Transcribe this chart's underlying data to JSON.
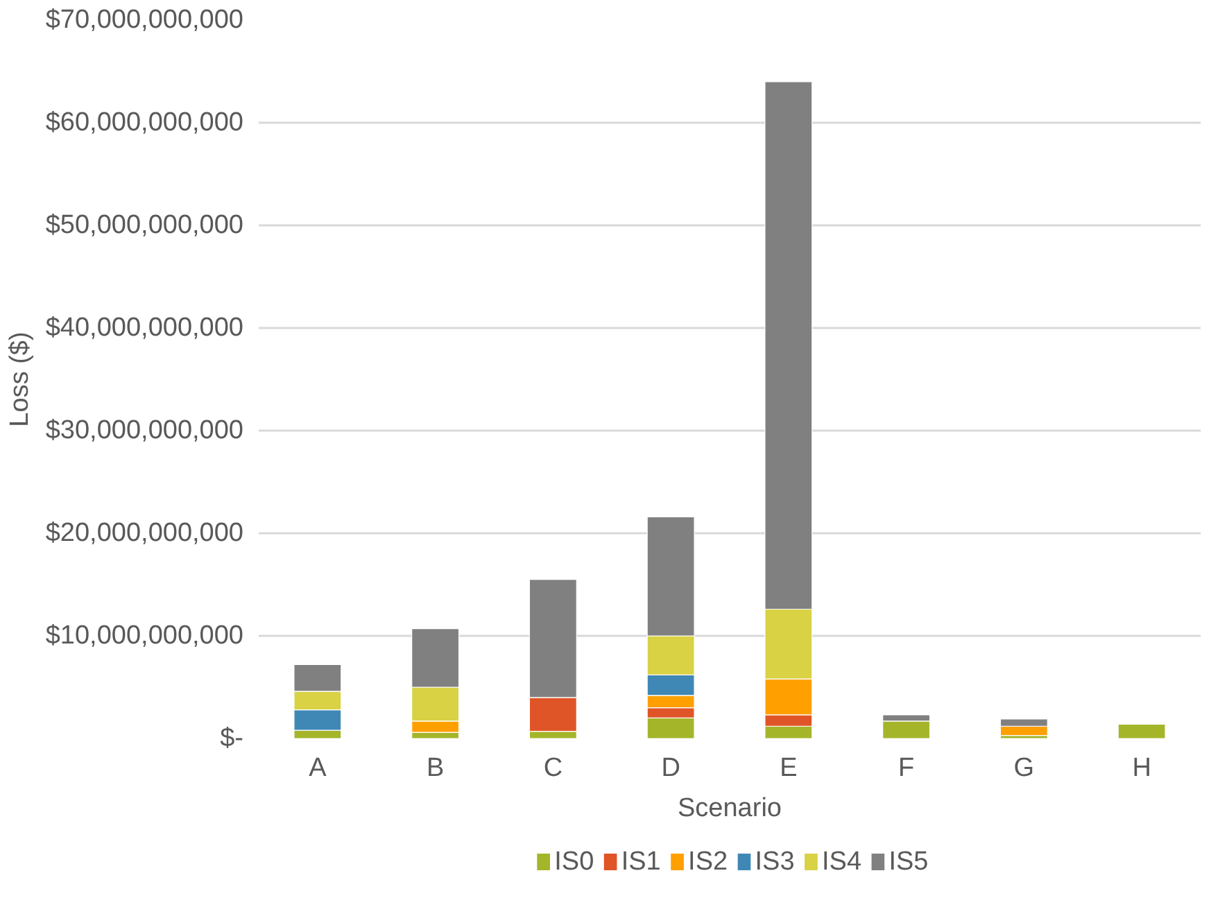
{
  "chart_data": {
    "type": "bar",
    "stacked": true,
    "xlabel": "Scenario",
    "ylabel": "Loss ($)",
    "categories": [
      "A",
      "B",
      "C",
      "D",
      "E",
      "F",
      "G",
      "H"
    ],
    "series": [
      {
        "name": "IS0",
        "color": "#a5b52a",
        "values": [
          800000000,
          600000000,
          700000000,
          2000000000,
          1200000000,
          1700000000,
          300000000,
          1400000000
        ]
      },
      {
        "name": "IS1",
        "color": "#e05527",
        "values": [
          null,
          null,
          3300000000,
          1000000000,
          1100000000,
          null,
          null,
          null
        ]
      },
      {
        "name": "IS2",
        "color": "#ffa000",
        "values": [
          null,
          1100000000,
          null,
          1200000000,
          3500000000,
          null,
          900000000,
          null
        ]
      },
      {
        "name": "IS3",
        "color": "#3f88b5",
        "values": [
          2000000000,
          null,
          null,
          2000000000,
          null,
          null,
          null,
          null
        ]
      },
      {
        "name": "IS4",
        "color": "#d8d244",
        "values": [
          1800000000,
          3300000000,
          null,
          3800000000,
          6800000000,
          null,
          null,
          null
        ]
      },
      {
        "name": "IS5",
        "color": "#808080",
        "values": [
          2600000000,
          5700000000,
          11500000000,
          11600000000,
          51400000000,
          600000000,
          700000000,
          null
        ]
      }
    ],
    "ylim": [
      0,
      70000000000
    ],
    "yticks": [
      {
        "value": 0,
        "label": "$-"
      },
      {
        "value": 10000000000,
        "label": "$10,000,000,000"
      },
      {
        "value": 20000000000,
        "label": "$20,000,000,000"
      },
      {
        "value": 30000000000,
        "label": "$30,000,000,000"
      },
      {
        "value": 40000000000,
        "label": "$40,000,000,000"
      },
      {
        "value": 50000000000,
        "label": "$50,000,000,000"
      },
      {
        "value": 60000000000,
        "label": "$60,000,000,000"
      },
      {
        "value": 70000000000,
        "label": "$70,000,000,000"
      }
    ],
    "grid": "y",
    "legend": "bottom"
  }
}
